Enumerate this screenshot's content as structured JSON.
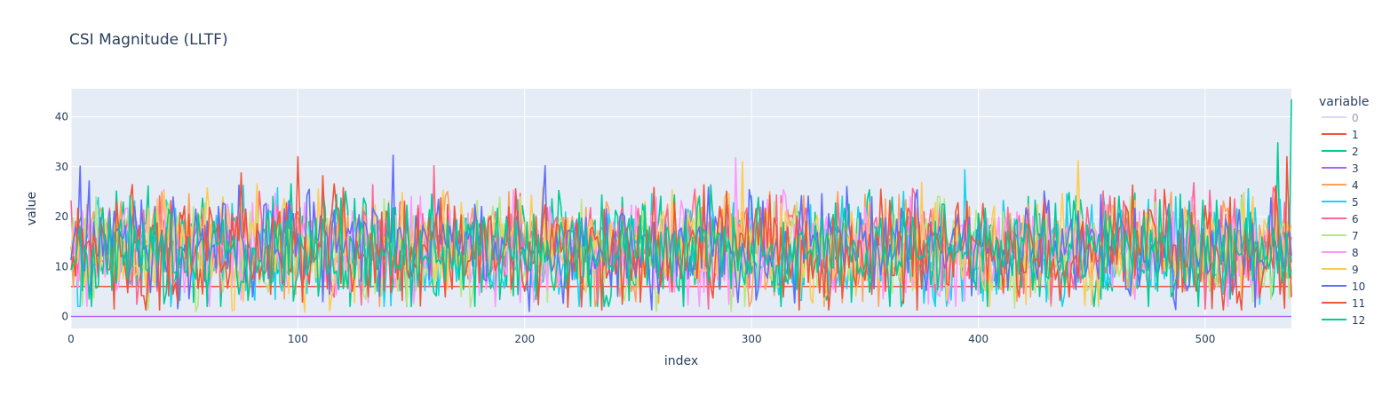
{
  "chart_data": {
    "type": "line",
    "title": "CSI Magnitude (LLTF)",
    "xlabel": "index",
    "ylabel": "value",
    "xlim": [
      0,
      538
    ],
    "ylim": [
      -2.4,
      45.6
    ],
    "x_ticks": [
      0,
      100,
      200,
      300,
      400,
      500
    ],
    "y_ticks": [
      0,
      10,
      20,
      30,
      40
    ],
    "grid": true,
    "legend": {
      "title": "variable",
      "placement": "right"
    },
    "x_count": 539,
    "series": [
      {
        "name": "0",
        "color": "#b3b3ff",
        "hidden": true,
        "values": []
      },
      {
        "name": "1",
        "color": "#EF553B",
        "constant": 6,
        "values": []
      },
      {
        "name": "2",
        "color": "#00CC96",
        "mean": 13,
        "spread": 7,
        "lo": 2,
        "hi": 43.5,
        "spikes": [
          [
            538,
            43.5
          ],
          [
            532,
            34.8
          ]
        ],
        "values": []
      },
      {
        "name": "3",
        "color": "#AB63FA",
        "constant": 0,
        "values": []
      },
      {
        "name": "4",
        "color": "#FFA15A",
        "mean": 14,
        "spread": 6,
        "lo": 2,
        "hi": 28,
        "values": []
      },
      {
        "name": "5",
        "color": "#19D3F3",
        "mean": 13,
        "spread": 6,
        "lo": 2,
        "hi": 29.5,
        "spikes": [
          [
            394,
            29.4
          ]
        ],
        "values": []
      },
      {
        "name": "6",
        "color": "#FF6692",
        "mean": 14,
        "spread": 6,
        "lo": 1.5,
        "hi": 30,
        "spikes": [
          [
            160,
            30.2
          ]
        ],
        "values": []
      },
      {
        "name": "7",
        "color": "#B6E880",
        "mean": 13,
        "spread": 6,
        "lo": 1,
        "hi": 27,
        "values": []
      },
      {
        "name": "8",
        "color": "#FF97FF",
        "mean": 13,
        "spread": 6,
        "lo": 2,
        "hi": 32,
        "spikes": [
          [
            293,
            31.8
          ]
        ],
        "values": []
      },
      {
        "name": "9",
        "color": "#FECB52",
        "mean": 14,
        "spread": 6,
        "lo": 0.8,
        "hi": 31,
        "spikes": [
          [
            444,
            31.2
          ],
          [
            296,
            31
          ]
        ],
        "values": []
      },
      {
        "name": "10",
        "color": "#636EFA",
        "mean": 14,
        "spread": 6,
        "lo": 1,
        "hi": 32.3,
        "spikes": [
          [
            142,
            32.3
          ],
          [
            209,
            30.2
          ],
          [
            4,
            30.1
          ]
        ],
        "values": []
      },
      {
        "name": "11",
        "color": "#EF553B",
        "mean": 13,
        "spread": 7,
        "lo": 1.3,
        "hi": 32.1,
        "spikes": [
          [
            100,
            32
          ],
          [
            536,
            32
          ]
        ],
        "values": []
      },
      {
        "name": "12",
        "color": "#00CC96",
        "mean": 13,
        "spread": 6,
        "lo": 2,
        "hi": 27.5,
        "values": []
      }
    ]
  }
}
